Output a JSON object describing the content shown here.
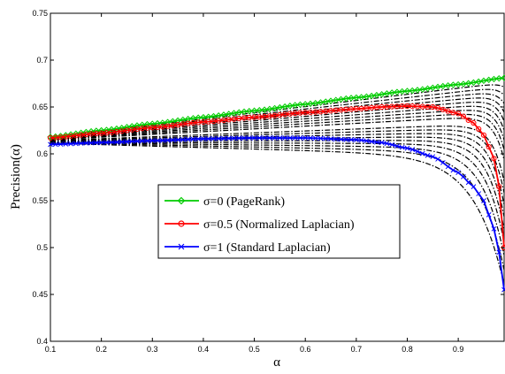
{
  "chart_data": {
    "type": "line",
    "xlabel": "α",
    "ylabel": "Precision(α)",
    "xlim": [
      0.1,
      0.99
    ],
    "ylim": [
      0.4,
      0.75
    ],
    "xticks": [
      "0.1",
      "0.2",
      "0.3",
      "0.4",
      "0.5",
      "0.6",
      "0.7",
      "0.8",
      "0.9"
    ],
    "yticks": [
      "0.4",
      "0.45",
      "0.5",
      "0.55",
      "0.6",
      "0.65",
      "0.7",
      "0.75"
    ],
    "grid": false,
    "legend_position": "center-left",
    "series": [
      {
        "name": "σ=0 (PageRank)",
        "color": "#00cc00",
        "marker": "diamond",
        "x": [
          0.1,
          0.2,
          0.3,
          0.4,
          0.5,
          0.6,
          0.7,
          0.8,
          0.9,
          0.99
        ],
        "y": [
          0.618,
          0.625,
          0.632,
          0.639,
          0.646,
          0.653,
          0.66,
          0.667,
          0.674,
          0.681
        ]
      },
      {
        "name": "σ=0.5 (Normalized Laplacian)",
        "color": "#ff0000",
        "marker": "circle",
        "x": [
          0.1,
          0.2,
          0.3,
          0.4,
          0.5,
          0.6,
          0.7,
          0.75,
          0.8,
          0.85,
          0.9,
          0.93,
          0.95,
          0.97,
          0.98,
          0.99
        ],
        "y": [
          0.617,
          0.622,
          0.628,
          0.634,
          0.639,
          0.644,
          0.648,
          0.65,
          0.651,
          0.65,
          0.643,
          0.633,
          0.62,
          0.595,
          0.565,
          0.5
        ]
      },
      {
        "name": "σ=1 (Standard Laplacian)",
        "color": "#0000ff",
        "marker": "x",
        "x": [
          0.1,
          0.2,
          0.3,
          0.4,
          0.5,
          0.6,
          0.7,
          0.75,
          0.8,
          0.85,
          0.9,
          0.93,
          0.95,
          0.97,
          0.98,
          0.99
        ],
        "y": [
          0.61,
          0.612,
          0.614,
          0.616,
          0.617,
          0.617,
          0.615,
          0.612,
          0.606,
          0.597,
          0.58,
          0.565,
          0.55,
          0.52,
          0.495,
          0.455
        ]
      }
    ],
    "intermediate_curves": {
      "color": "#000000",
      "style": "dash-dot",
      "sigma": [
        0.05,
        0.1,
        0.15,
        0.2,
        0.25,
        0.3,
        0.35,
        0.4,
        0.45,
        0.55,
        0.6,
        0.65,
        0.7,
        0.75,
        0.8,
        0.85,
        0.9,
        0.95
      ]
    }
  }
}
